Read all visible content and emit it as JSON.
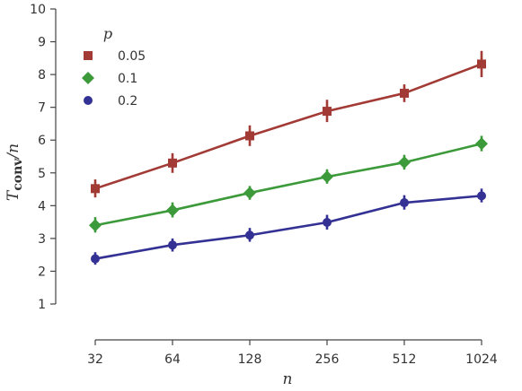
{
  "chart_data": {
    "type": "line",
    "xscale": "log2",
    "x": [
      32,
      64,
      128,
      256,
      512,
      1024
    ],
    "xtick_labels": [
      "32",
      "64",
      "128",
      "256",
      "512",
      "1024"
    ],
    "ylim": [
      1,
      10
    ],
    "yticks": [
      1,
      2,
      3,
      4,
      5,
      6,
      7,
      8,
      9,
      10
    ],
    "xlabel": "n",
    "ylabel": "Tconv/n",
    "grid": false,
    "legend": {
      "title": "p",
      "position": "top-left"
    },
    "series": [
      {
        "name": "0.05",
        "color": "#a23b35",
        "marker": "square",
        "values": [
          4.52,
          5.3,
          6.13,
          6.88,
          7.43,
          8.32
        ],
        "err_low": [
          4.25,
          5.0,
          5.82,
          6.55,
          7.16,
          7.92
        ],
        "err_high": [
          4.8,
          5.6,
          6.45,
          7.23,
          7.7,
          8.72
        ]
      },
      {
        "name": "0.1",
        "color": "#3d9a3b",
        "marker": "diamond",
        "values": [
          3.4,
          3.86,
          4.39,
          4.88,
          5.32,
          5.89
        ],
        "err_low": [
          3.18,
          3.64,
          4.18,
          4.67,
          5.1,
          5.66
        ],
        "err_high": [
          3.65,
          4.1,
          4.6,
          5.11,
          5.55,
          6.13
        ]
      },
      {
        "name": "0.2",
        "color": "#343194",
        "marker": "circle",
        "values": [
          2.38,
          2.8,
          3.1,
          3.49,
          4.09,
          4.3
        ],
        "err_low": [
          2.2,
          2.6,
          2.9,
          3.27,
          3.88,
          4.1
        ],
        "err_high": [
          2.58,
          3.0,
          3.32,
          3.72,
          4.32,
          4.52
        ]
      }
    ]
  }
}
